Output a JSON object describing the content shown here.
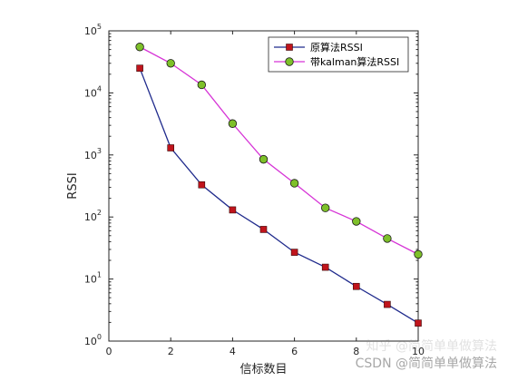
{
  "chart_data": {
    "type": "line",
    "title": "",
    "xlabel": "信标数目",
    "ylabel": "RSSI",
    "xlim": [
      0,
      10
    ],
    "ylim": [
      1,
      100000
    ],
    "yscale": "log",
    "grid": false,
    "legend_position": "top-right",
    "x_ticks": [
      {
        "value": 0,
        "label": "0"
      },
      {
        "value": 2,
        "label": "2"
      },
      {
        "value": 4,
        "label": "4"
      },
      {
        "value": 6,
        "label": "6"
      },
      {
        "value": 8,
        "label": "8"
      },
      {
        "value": 10,
        "label": "10"
      }
    ],
    "y_ticks": [
      {
        "value": 1,
        "base": "10",
        "exp": "0"
      },
      {
        "value": 10,
        "base": "10",
        "exp": "1"
      },
      {
        "value": 100,
        "base": "10",
        "exp": "2"
      },
      {
        "value": 1000,
        "base": "10",
        "exp": "3"
      },
      {
        "value": 10000,
        "base": "10",
        "exp": "4"
      },
      {
        "value": 100000,
        "base": "10",
        "exp": "5"
      }
    ],
    "x": [
      1,
      2,
      3,
      4,
      5,
      6,
      7,
      8,
      9,
      10
    ],
    "series": [
      {
        "name": "原算法RSSI",
        "color": "#1f2a8c",
        "marker": "square",
        "marker_color": "#c0141c",
        "values": [
          25000,
          1300,
          330,
          130,
          63,
          27,
          15.5,
          7.6,
          3.9,
          1.95
        ]
      },
      {
        "name": "带kalman算法RSSI",
        "color": "#d633d6",
        "marker": "circle",
        "marker_color": "#7ec02a",
        "values": [
          55000,
          30000,
          13500,
          3200,
          850,
          350,
          140,
          85,
          45,
          25
        ]
      }
    ]
  },
  "watermark": {
    "primary": "CSDN @简简单单做算法",
    "ghost": "知乎 @简简单单做算法"
  }
}
